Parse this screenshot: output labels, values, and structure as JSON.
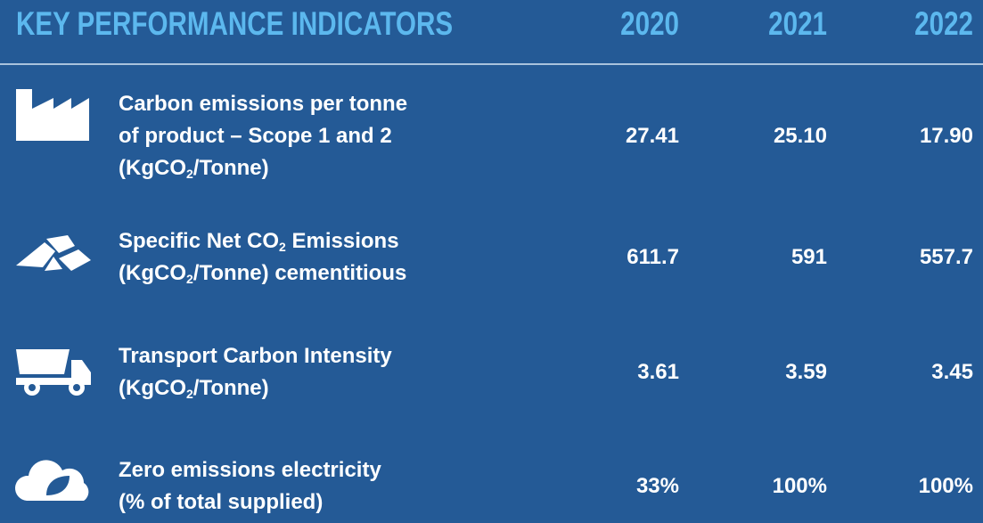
{
  "header": {
    "title": "KEY PERFORMANCE INDICATORS",
    "years": [
      "2020",
      "2021",
      "2022"
    ]
  },
  "rows": [
    {
      "lines": [
        [
          "Carbon emissions per tonne"
        ],
        [
          "of product – Scope 1 and 2"
        ],
        [
          "(KgCO",
          {
            "sub": "2"
          },
          "/Tonne)"
        ]
      ],
      "values": [
        "27.41",
        "25.10",
        "17.90"
      ]
    },
    {
      "lines": [
        [
          "Specific Net CO",
          {
            "sub": "2"
          },
          " Emissions"
        ],
        [
          "(KgCO",
          {
            "sub": "2"
          },
          "/Tonne) cementitious"
        ]
      ],
      "values": [
        "611.7",
        "591",
        "557.7"
      ]
    },
    {
      "lines": [
        [
          "Transport Carbon Intensity"
        ],
        [
          "(KgCO",
          {
            "sub": "2"
          },
          "/Tonne)"
        ]
      ],
      "values": [
        "3.61",
        "3.59",
        "3.45"
      ]
    },
    {
      "lines": [
        [
          "Zero emissions electricity"
        ],
        [
          "(% of total supplied)"
        ]
      ],
      "values": [
        "33%",
        "100%",
        "100%"
      ]
    }
  ]
}
